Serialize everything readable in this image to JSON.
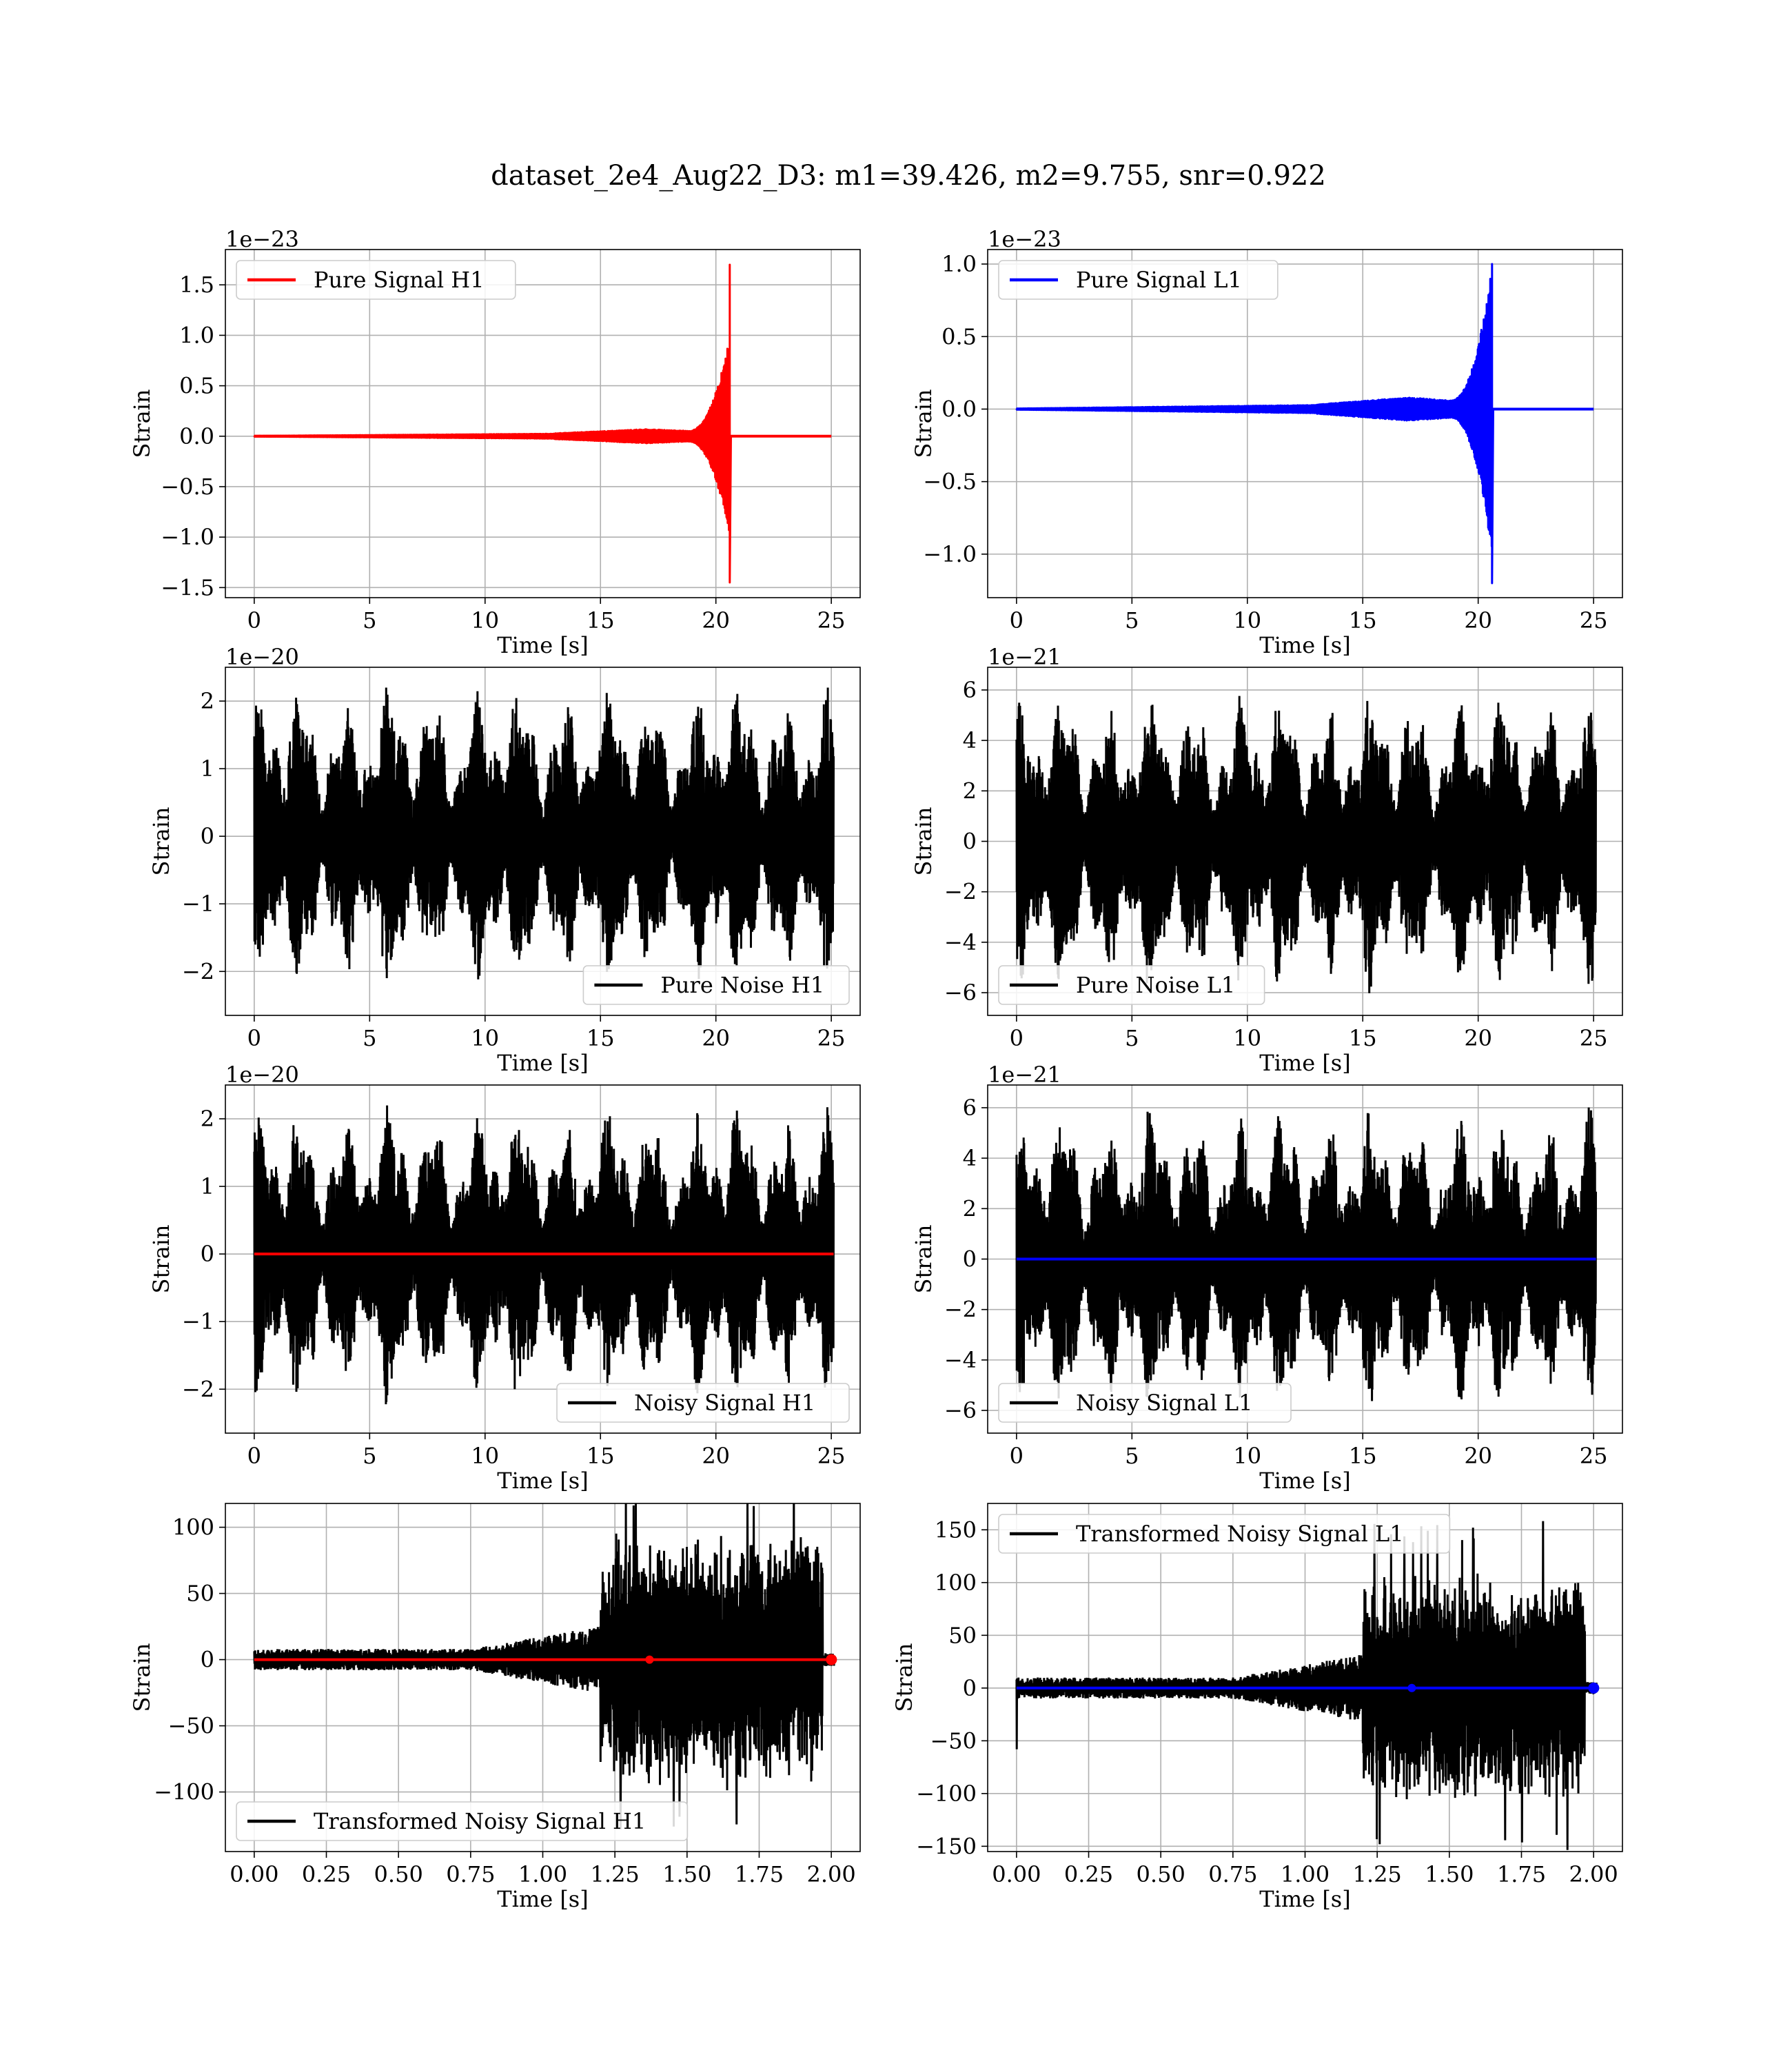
{
  "figure": {
    "title": "dataset_2e4_Aug22_D3: m1=39.426, m2=9.755, snr=0.922"
  },
  "chart_data": [
    {
      "id": "p0",
      "type": "line",
      "row": 0,
      "col": 0,
      "xlabel": "Time [s]",
      "ylabel": "Strain",
      "xlim": [
        -1.25,
        26.25
      ],
      "ylim": [
        -1.6,
        1.85
      ],
      "xticks": [
        0,
        5,
        10,
        15,
        20,
        25
      ],
      "xtick_labels": [
        "0",
        "5",
        "10",
        "15",
        "20",
        "25"
      ],
      "yticks": [
        -1.5,
        -1.0,
        -0.5,
        0.0,
        0.5,
        1.0,
        1.5
      ],
      "ytick_labels": [
        "−1.5",
        "−1.0",
        "−0.5",
        "0.0",
        "0.5",
        "1.0",
        "1.5"
      ],
      "offset_text": "1e−23",
      "grid": true,
      "legend": "upper-left",
      "series": [
        {
          "name": "Pure Signal H1",
          "kind": "chirp",
          "color": "#ff0000",
          "t_merge": 20.6,
          "amp_early": 0.07,
          "amp_peak": 1.0,
          "spike_up": 1.7,
          "spike_down": -1.45
        }
      ]
    },
    {
      "id": "p1",
      "type": "line",
      "row": 0,
      "col": 1,
      "xlabel": "Time [s]",
      "ylabel": "Strain",
      "xlim": [
        -1.25,
        26.25
      ],
      "ylim": [
        -1.3,
        1.1
      ],
      "xticks": [
        0,
        5,
        10,
        15,
        20,
        25
      ],
      "xtick_labels": [
        "0",
        "5",
        "10",
        "15",
        "20",
        "25"
      ],
      "yticks": [
        -1.0,
        -0.5,
        0.0,
        0.5,
        1.0
      ],
      "ytick_labels": [
        "−1.0",
        "−0.5",
        "0.0",
        "0.5",
        "1.0"
      ],
      "offset_text": "1e−23",
      "grid": true,
      "legend": "upper-left",
      "series": [
        {
          "name": "Pure Signal L1",
          "kind": "chirp",
          "color": "#0000ff",
          "t_merge": 20.6,
          "amp_early": 0.08,
          "amp_peak": 1.0,
          "spike_up": 1.0,
          "spike_down": -1.2
        }
      ]
    },
    {
      "id": "p2",
      "type": "line",
      "row": 1,
      "col": 0,
      "xlabel": "Time [s]",
      "ylabel": "Strain",
      "xlim": [
        -1.25,
        26.25
      ],
      "ylim": [
        -2.65,
        2.5
      ],
      "xticks": [
        0,
        5,
        10,
        15,
        20,
        25
      ],
      "xtick_labels": [
        "0",
        "5",
        "10",
        "15",
        "20",
        "25"
      ],
      "yticks": [
        -2,
        -1,
        0,
        1,
        2
      ],
      "ytick_labels": [
        "−2",
        "−1",
        "0",
        "1",
        "2"
      ],
      "offset_text": "1e−20",
      "grid": true,
      "legend": "lower-right",
      "series": [
        {
          "name": "Pure Noise H1",
          "kind": "noise",
          "color": "#000000",
          "amp": 2.3,
          "t_end": 25.1
        }
      ]
    },
    {
      "id": "p3",
      "type": "line",
      "row": 1,
      "col": 1,
      "xlabel": "Time [s]",
      "ylabel": "Strain",
      "xlim": [
        -1.25,
        26.25
      ],
      "ylim": [
        -6.9,
        6.9
      ],
      "xticks": [
        0,
        5,
        10,
        15,
        20,
        25
      ],
      "xtick_labels": [
        "0",
        "5",
        "10",
        "15",
        "20",
        "25"
      ],
      "yticks": [
        -6,
        -4,
        -2,
        0,
        2,
        4,
        6
      ],
      "ytick_labels": [
        "−6",
        "−4",
        "−2",
        "0",
        "2",
        "4",
        "6"
      ],
      "offset_text": "1e−21",
      "grid": true,
      "legend": "lower-left",
      "series": [
        {
          "name": "Pure Noise L1",
          "kind": "noise",
          "color": "#000000",
          "amp": 6.2,
          "t_end": 25.1
        }
      ]
    },
    {
      "id": "p4",
      "type": "line",
      "row": 2,
      "col": 0,
      "xlabel": "Time [s]",
      "ylabel": "Strain",
      "xlim": [
        -1.25,
        26.25
      ],
      "ylim": [
        -2.65,
        2.5
      ],
      "xticks": [
        0,
        5,
        10,
        15,
        20,
        25
      ],
      "xtick_labels": [
        "0",
        "5",
        "10",
        "15",
        "20",
        "25"
      ],
      "yticks": [
        -2,
        -1,
        0,
        1,
        2
      ],
      "ytick_labels": [
        "−2",
        "−1",
        "0",
        "1",
        "2"
      ],
      "offset_text": "1e−20",
      "grid": true,
      "legend": "lower-right",
      "series": [
        {
          "name": "Noisy Signal H1",
          "kind": "noise",
          "color": "#000000",
          "amp": 2.3,
          "t_end": 25.1
        },
        {
          "name": "",
          "kind": "flat",
          "color": "#ff0000",
          "t_end": 25.1
        }
      ]
    },
    {
      "id": "p5",
      "type": "line",
      "row": 2,
      "col": 1,
      "xlabel": "Time [s]",
      "ylabel": "Strain",
      "xlim": [
        -1.25,
        26.25
      ],
      "ylim": [
        -6.9,
        6.9
      ],
      "xticks": [
        0,
        5,
        10,
        15,
        20,
        25
      ],
      "xtick_labels": [
        "0",
        "5",
        "10",
        "15",
        "20",
        "25"
      ],
      "yticks": [
        -6,
        -4,
        -2,
        0,
        2,
        4,
        6
      ],
      "ytick_labels": [
        "−6",
        "−4",
        "−2",
        "0",
        "2",
        "4",
        "6"
      ],
      "offset_text": "1e−21",
      "grid": true,
      "legend": "lower-left",
      "series": [
        {
          "name": "Noisy Signal L1",
          "kind": "noise",
          "color": "#000000",
          "amp": 6.2,
          "t_end": 25.1
        },
        {
          "name": "",
          "kind": "flat",
          "color": "#0000ff",
          "t_end": 25.1
        }
      ]
    },
    {
      "id": "p6",
      "type": "line",
      "row": 3,
      "col": 0,
      "xlabel": "Time [s]",
      "ylabel": "Strain",
      "xlim": [
        -0.1,
        2.1
      ],
      "ylim": [
        -145,
        118
      ],
      "xticks": [
        0,
        0.25,
        0.5,
        0.75,
        1.0,
        1.25,
        1.5,
        1.75,
        2.0
      ],
      "xtick_labels": [
        "0.00",
        "0.25",
        "0.50",
        "0.75",
        "1.00",
        "1.25",
        "1.50",
        "1.75",
        "2.00"
      ],
      "yticks": [
        -100,
        -50,
        0,
        50,
        100
      ],
      "ytick_labels": [
        "−100",
        "−50",
        "0",
        "50",
        "100"
      ],
      "offset_text": "",
      "grid": true,
      "legend": "lower-left",
      "series": [
        {
          "name": "Transformed Noisy Signal H1",
          "kind": "burst",
          "color": "#000000",
          "t_end": 2.01,
          "t_burst": 1.2,
          "amp_low": 8,
          "amp_high": 100,
          "amp_max": 135
        },
        {
          "name": "",
          "kind": "flat",
          "color": "#ff0000",
          "t_end": 2.01,
          "marker_t": 1.37
        }
      ]
    },
    {
      "id": "p7",
      "type": "line",
      "row": 3,
      "col": 1,
      "xlabel": "Time [s]",
      "ylabel": "Strain",
      "xlim": [
        -0.1,
        2.1
      ],
      "ylim": [
        -155,
        175
      ],
      "xticks": [
        0,
        0.25,
        0.5,
        0.75,
        1.0,
        1.25,
        1.5,
        1.75,
        2.0
      ],
      "xtick_labels": [
        "0.00",
        "0.25",
        "0.50",
        "0.75",
        "1.00",
        "1.25",
        "1.50",
        "1.75",
        "2.00"
      ],
      "yticks": [
        -150,
        -100,
        -50,
        0,
        50,
        100,
        150
      ],
      "ytick_labels": [
        "−150",
        "−100",
        "−50",
        "0",
        "50",
        "100",
        "150"
      ],
      "offset_text": "",
      "grid": true,
      "legend": "upper-left",
      "series": [
        {
          "name": "Transformed Noisy Signal L1",
          "kind": "burst",
          "color": "#000000",
          "t_end": 2.01,
          "t_burst": 1.2,
          "amp_low": 10,
          "amp_high": 110,
          "amp_max": 160,
          "start_dip": -58
        },
        {
          "name": "",
          "kind": "flat",
          "color": "#0000ff",
          "t_end": 2.01,
          "marker_t": 1.37
        }
      ]
    }
  ]
}
